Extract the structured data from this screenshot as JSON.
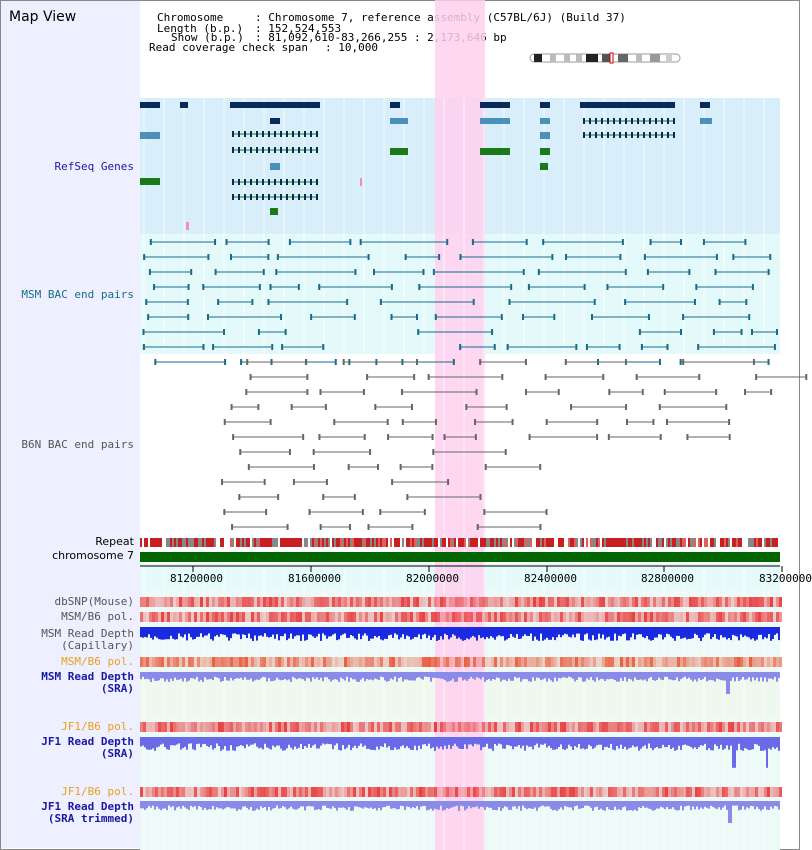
{
  "app_title": "Map View",
  "header": {
    "chromosome_key": "Chromosome",
    "chromosome_value": ": Chromosome 7, reference assembly (C57BL/6J) (Build 37)",
    "length_key": "Length (b.p.)",
    "length_value": ": 152,524,553",
    "show_key": "Show (b.p.)",
    "show_value": ": 81,092,610-83,266,255 : 2,173,646 bp",
    "coverage_key": "Read coverage check span",
    "coverage_value": ": 10,000"
  },
  "tracks": {
    "refseq": "RefSeq Genes",
    "msm_bac": "MSM BAC end pairs",
    "b6n_bac": "B6N BAC end pairs",
    "repeat": "Repeat",
    "chromosome": "chromosome 7",
    "dbsnp": "dbSNP(Mouse)",
    "msm_b6_pol_1": "MSM/B6 pol.",
    "msm_read_depth_cap_1": "MSM Read Depth",
    "msm_read_depth_cap_2": "(Capillary)",
    "msm_b6_pol_2": "MSM/B6 pol.",
    "msm_read_depth_sra_1": "MSM Read Depth",
    "msm_read_depth_sra_2": "(SRA)",
    "jf1_b6_pol_1": "JF1/B6 pol.",
    "jf1_read_depth_sra_1": "JF1 Read Depth",
    "jf1_read_depth_sra_2": "(SRA)",
    "jf1_b6_pol_2": "JF1/B6 pol.",
    "jf1_read_depth_trim_1": "JF1 Read Depth",
    "jf1_read_depth_trim_2": "(SRA trimmed)"
  },
  "axis": {
    "ticks": [
      "81200000",
      "81600000",
      "82000000",
      "82400000",
      "82800000",
      "83200000"
    ]
  },
  "colors": {
    "label_blue": "#1a1aa0",
    "label_teal": "#1a6a8a",
    "label_gray": "#555555",
    "label_orange": "#e8a020",
    "highlight": "#ffd0ee",
    "refseq_bg": "#d8eefa",
    "msm_bg": "#e4fafa",
    "chrom_green": "#006400"
  }
}
